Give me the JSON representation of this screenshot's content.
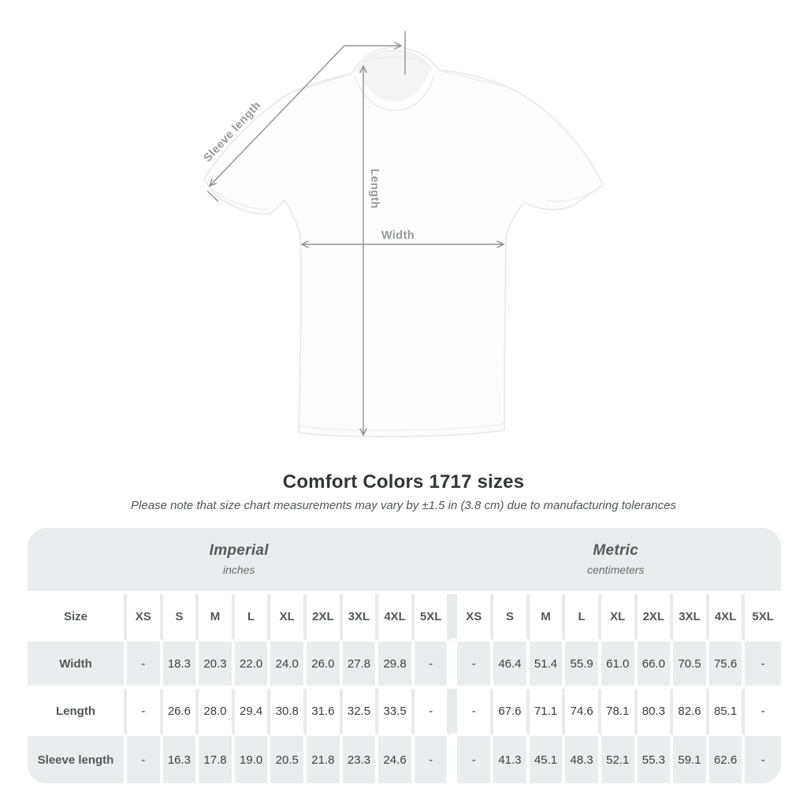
{
  "diagram": {
    "sleeve_label": "Sleeve length",
    "length_label": "Length",
    "width_label": "Width"
  },
  "header": {
    "title": "Comfort Colors 1717 sizes",
    "subtitle": "Please note that size chart measurements may vary by ±1.5 in (3.8 cm) due to manufacturing tolerances"
  },
  "table": {
    "groups": [
      {
        "label": "Imperial",
        "unit": "inches"
      },
      {
        "label": "Metric",
        "unit": "centimeters"
      }
    ],
    "size_column_header": "Size",
    "sizes": [
      "XS",
      "S",
      "M",
      "L",
      "XL",
      "2XL",
      "3XL",
      "4XL",
      "5XL"
    ],
    "rows": [
      {
        "label": "Width",
        "imperial": [
          "-",
          "18.3",
          "20.3",
          "22.0",
          "24.0",
          "26.0",
          "27.8",
          "29.8",
          "-"
        ],
        "metric": [
          "-",
          "46.4",
          "51.4",
          "55.9",
          "61.0",
          "66.0",
          "70.5",
          "75.6",
          "-"
        ]
      },
      {
        "label": "Length",
        "imperial": [
          "-",
          "26.6",
          "28.0",
          "29.4",
          "30.8",
          "31.6",
          "32.5",
          "33.5",
          "-"
        ],
        "metric": [
          "-",
          "67.6",
          "71.1",
          "74.6",
          "78.1",
          "80.3",
          "82.6",
          "85.1",
          "-"
        ]
      },
      {
        "label": "Sleeve length",
        "imperial": [
          "-",
          "16.3",
          "17.8",
          "19.0",
          "20.5",
          "21.8",
          "23.3",
          "24.6",
          "-"
        ],
        "metric": [
          "-",
          "41.3",
          "45.1",
          "48.3",
          "52.1",
          "55.3",
          "59.1",
          "62.6",
          "-"
        ]
      }
    ]
  },
  "colors": {
    "table_shade": "#ebeced",
    "dimension_line": "#8e9194",
    "diagram_label": "#96989b",
    "header_text": "#54575a",
    "value_text": "#3b3d3f",
    "title_text": "#333537"
  }
}
